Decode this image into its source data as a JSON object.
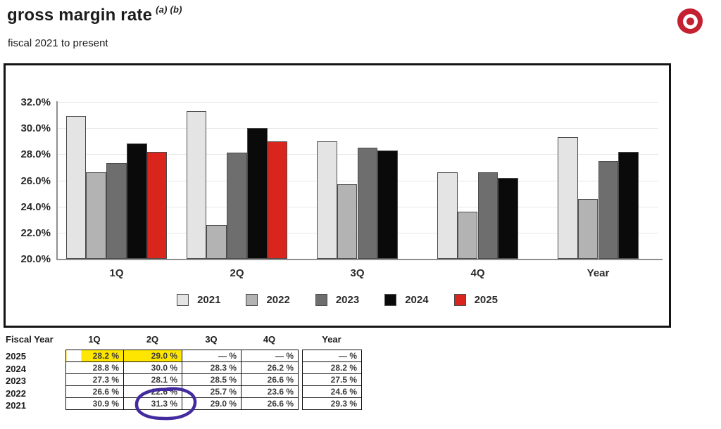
{
  "header": {
    "title": "gross margin rate",
    "title_superscript": "(a) (b)",
    "subtitle": "fiscal 2021 to present",
    "logo_icon": "target-bullseye",
    "logo_color": "#c42032"
  },
  "chart_data": {
    "type": "bar",
    "title": "gross margin rate (a) (b)",
    "categories": [
      "1Q",
      "2Q",
      "3Q",
      "4Q",
      "Year"
    ],
    "series": [
      {
        "name": "2021",
        "color": "#e4e4e4",
        "values": [
          30.9,
          31.3,
          29.0,
          26.6,
          29.3
        ]
      },
      {
        "name": "2022",
        "color": "#b3b3b3",
        "values": [
          26.6,
          22.6,
          25.7,
          23.6,
          24.6
        ]
      },
      {
        "name": "2023",
        "color": "#6e6e6e",
        "values": [
          27.3,
          28.1,
          28.5,
          26.6,
          27.5
        ]
      },
      {
        "name": "2024",
        "color": "#0a0a0a",
        "values": [
          28.8,
          30.0,
          28.3,
          26.2,
          28.2
        ]
      },
      {
        "name": "2025",
        "color": "#d9251c",
        "values": [
          28.2,
          29.0,
          null,
          null,
          null
        ]
      }
    ],
    "ylim": [
      20,
      32
    ],
    "ytick_step": 2,
    "ytick_labels": [
      "32.0%",
      "30.0%",
      "28.0%",
      "26.0%",
      "24.0%",
      "22.0%",
      "20.0%"
    ],
    "grid": true,
    "legend_position": "bottom-inside",
    "bar_border_color": "#4c4c4c"
  },
  "table": {
    "headers": [
      "Fiscal Year",
      "1Q",
      "2Q",
      "3Q",
      "4Q",
      "Year"
    ],
    "rows": [
      {
        "year": "2025",
        "values": [
          "28.2 %",
          "29.0 %",
          "— %",
          "— %",
          "— %"
        ],
        "highlight": [
          "partial",
          "full",
          null,
          null,
          null
        ]
      },
      {
        "year": "2024",
        "values": [
          "28.8 %",
          "30.0 %",
          "28.3 %",
          "26.2 %",
          "28.2 %"
        ],
        "highlight": [
          null,
          null,
          null,
          null,
          null
        ]
      },
      {
        "year": "2023",
        "values": [
          "27.3 %",
          "28.1 %",
          "28.5 %",
          "26.6 %",
          "27.5 %"
        ],
        "highlight": [
          null,
          null,
          null,
          null,
          null
        ]
      },
      {
        "year": "2022",
        "values": [
          "26.6 %",
          "22.6 %",
          "25.7 %",
          "23.6 %",
          "24.6 %"
        ],
        "highlight": [
          null,
          null,
          null,
          null,
          null
        ],
        "circled_column": 1
      },
      {
        "year": "2021",
        "values": [
          "30.9 %",
          "31.3 %",
          "29.0 %",
          "26.6 %",
          "29.3 %"
        ],
        "highlight": [
          null,
          null,
          null,
          null,
          null
        ]
      }
    ],
    "highlight_color": "#ffe600",
    "annotation": {
      "shape": "pen-circle",
      "color": "#432b9f",
      "target": "2022 2Q value 22.6 %"
    }
  }
}
